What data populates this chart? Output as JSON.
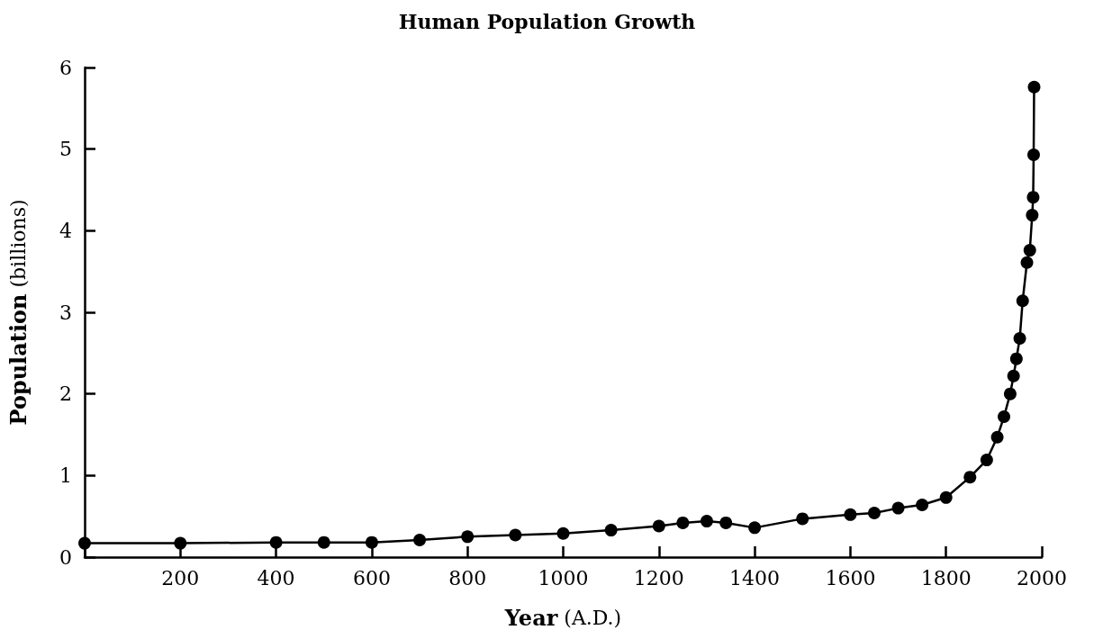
{
  "chart_data": {
    "type": "line",
    "title": "Human Population Growth",
    "xlabel": "Year (A.D.)",
    "ylabel": "Population (billions)",
    "x": [
      0,
      200,
      400,
      500,
      600,
      700,
      800,
      900,
      1000,
      1100,
      1200,
      1250,
      1300,
      1340,
      1400,
      1500,
      1600,
      1650,
      1700,
      1750,
      1800,
      1850,
      1885,
      1907,
      1921,
      1934,
      1941,
      1947,
      1954,
      1960,
      1969,
      1975,
      1980,
      1982,
      1983,
      1984
    ],
    "series": [
      {
        "color": "#000000",
        "values": [
          0.17,
          0.17,
          0.18,
          0.18,
          0.18,
          0.21,
          0.25,
          0.27,
          0.29,
          0.33,
          0.38,
          0.42,
          0.44,
          0.42,
          0.36,
          0.47,
          0.52,
          0.54,
          0.6,
          0.64,
          0.73,
          0.98,
          1.19,
          1.47,
          1.72,
          2.0,
          2.22,
          2.43,
          2.68,
          3.14,
          3.61,
          3.76,
          4.19,
          4.41,
          4.93,
          5.76
        ]
      }
    ],
    "xlim": [
      0,
      2000
    ],
    "xticks": [
      {
        "value": 0,
        "label": null
      },
      200,
      400,
      600,
      800,
      1000,
      1200,
      1400,
      1600,
      1800,
      2000
    ],
    "ylim": [
      0,
      6
    ],
    "yticks": [
      0,
      1,
      2,
      3,
      4,
      5,
      6
    ],
    "grid": false,
    "marker": "circle",
    "line_style": "solid"
  }
}
